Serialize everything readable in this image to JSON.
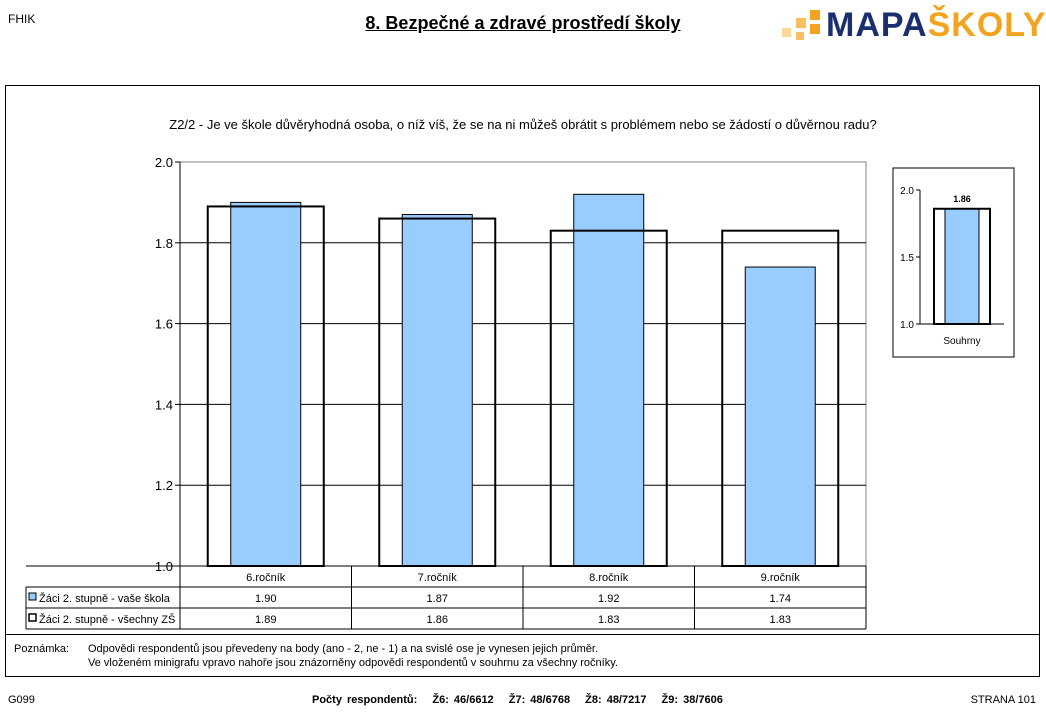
{
  "header": {
    "school_code": "FHIK",
    "title": "8. Bezpečné a zdravé prostředí školy",
    "logo_part1": "MAPA",
    "logo_part2": "ŠKOLY",
    "logo_color_dark": "#1b2f6e",
    "logo_color_accent": "#f2a421"
  },
  "question": "Z2/2 - Je ve škole důvěryhodná osoba, o níž víš, že se na ni můžeš obrátit s problémem nebo se žádostí o důvěrnou radu?",
  "chart_data": [
    {
      "type": "bar",
      "categories": [
        "6.ročník",
        "7.ročník",
        "8.ročník",
        "9.ročník"
      ],
      "series": [
        {
          "name": "Žáci 2. stupně - vaše škola",
          "values": [
            1.9,
            1.87,
            1.92,
            1.74
          ],
          "display": [
            "1.90",
            "1.87",
            "1.92",
            "1.74"
          ],
          "color": "#99ccff"
        },
        {
          "name": "Žáci 2. stupně - všechny ZŠ",
          "values": [
            1.89,
            1.86,
            1.83,
            1.83
          ],
          "display": [
            "1.89",
            "1.86",
            "1.83",
            "1.83"
          ],
          "color": "#ffffff"
        }
      ],
      "ylim": [
        1.0,
        2.0
      ],
      "yticks": [
        "1.0",
        "1.2",
        "1.4",
        "1.6",
        "1.8",
        "2.0"
      ],
      "grid": true,
      "legend": "data-table"
    },
    {
      "type": "bar",
      "categories": [
        "Souhrny"
      ],
      "series": [
        {
          "values": [
            1.86
          ],
          "label": "1.86",
          "color": "#99ccff"
        },
        {
          "values": [
            1.86
          ],
          "color": "#ffffff"
        }
      ],
      "ylim": [
        1.0,
        2.0
      ],
      "yticks": [
        "1.0",
        "1.5",
        "2.0"
      ]
    }
  ],
  "note": {
    "label": "Poznámka:",
    "line1": "Odpovědi respondentů jsou převedeny na body (ano - 2, ne - 1) a na svislé ose je vynesen jejich průměr.",
    "line2": "Ve vloženém minigrafu vpravo nahoře jsou znázorněny odpovědi respondentů v souhrnu za všechny ročníky."
  },
  "footer": {
    "chart_code": "G099",
    "respondents_label": "Počty respondentů:",
    "respondents": [
      "Ž6: 46/6612",
      "Ž7: 48/6768",
      "Ž8: 48/7217",
      "Ž9: 38/7606"
    ],
    "page": "STRANA 101"
  }
}
